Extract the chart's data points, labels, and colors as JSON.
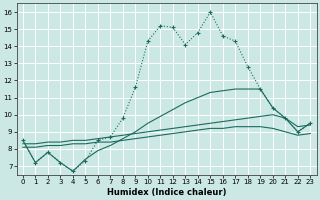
{
  "xlabel": "Humidex (Indice chaleur)",
  "bg_color": "#cce8e4",
  "grid_color": "#ffffff",
  "line_color": "#1a6b5e",
  "xlim": [
    -0.5,
    23.5
  ],
  "ylim": [
    6.5,
    16.5
  ],
  "xticks": [
    0,
    1,
    2,
    3,
    4,
    5,
    6,
    7,
    8,
    9,
    10,
    11,
    12,
    13,
    14,
    15,
    16,
    17,
    18,
    19,
    20,
    21,
    22,
    23
  ],
  "yticks": [
    7,
    8,
    9,
    10,
    11,
    12,
    13,
    14,
    15,
    16
  ],
  "line_main": {
    "x": [
      0,
      1,
      2,
      3,
      4,
      5,
      6,
      7,
      8,
      9,
      10,
      11,
      12,
      13,
      14,
      15,
      16,
      17,
      18,
      19,
      20,
      21,
      22,
      23
    ],
    "y": [
      8.5,
      7.2,
      7.8,
      7.2,
      6.7,
      7.3,
      8.5,
      8.7,
      9.8,
      11.6,
      14.3,
      15.2,
      15.1,
      14.1,
      14.8,
      16.0,
      14.6,
      14.3,
      12.8,
      11.5,
      10.4,
      9.8,
      9.0,
      9.5
    ]
  },
  "line_second": {
    "x": [
      0,
      1,
      2,
      3,
      4,
      5,
      6,
      7,
      8,
      9,
      10,
      11,
      12,
      13,
      14,
      15,
      16,
      17,
      18,
      19,
      20,
      21,
      22,
      23
    ],
    "y": [
      8.5,
      7.2,
      7.8,
      7.2,
      6.7,
      7.4,
      7.9,
      8.2,
      8.6,
      9.0,
      9.5,
      9.9,
      10.3,
      10.7,
      11.0,
      11.3,
      11.4,
      11.5,
      11.5,
      11.5,
      10.4,
      9.8,
      9.0,
      9.5
    ]
  },
  "line_third": {
    "x": [
      0,
      1,
      2,
      3,
      4,
      5,
      6,
      7,
      8,
      9,
      10,
      11,
      12,
      13,
      14,
      15,
      16,
      17,
      18,
      19,
      20,
      21,
      22,
      23
    ],
    "y": [
      8.3,
      8.3,
      8.4,
      8.4,
      8.5,
      8.5,
      8.6,
      8.7,
      8.8,
      8.9,
      9.0,
      9.1,
      9.2,
      9.3,
      9.4,
      9.5,
      9.6,
      9.7,
      9.8,
      9.9,
      10.0,
      9.8,
      9.3,
      9.4
    ]
  },
  "line_fourth": {
    "x": [
      0,
      1,
      2,
      3,
      4,
      5,
      6,
      7,
      8,
      9,
      10,
      11,
      12,
      13,
      14,
      15,
      16,
      17,
      18,
      19,
      20,
      21,
      22,
      23
    ],
    "y": [
      8.1,
      8.1,
      8.2,
      8.2,
      8.3,
      8.3,
      8.4,
      8.4,
      8.5,
      8.6,
      8.7,
      8.8,
      8.9,
      9.0,
      9.1,
      9.2,
      9.2,
      9.3,
      9.3,
      9.3,
      9.2,
      9.0,
      8.8,
      8.9
    ]
  }
}
